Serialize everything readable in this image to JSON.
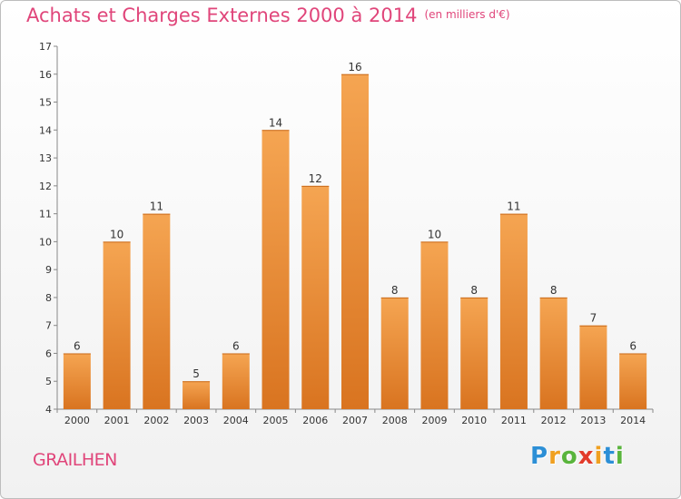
{
  "chart_data": {
    "type": "bar",
    "title": "Achats et Charges Externes 2000 à 2014",
    "subtitle": "(en milliers d'€)",
    "categories": [
      "2000",
      "2001",
      "2002",
      "2003",
      "2004",
      "2005",
      "2006",
      "2007",
      "2008",
      "2009",
      "2010",
      "2011",
      "2012",
      "2013",
      "2014"
    ],
    "values": [
      6,
      10,
      11,
      5,
      6,
      14,
      12,
      16,
      8,
      10,
      8,
      11,
      8,
      7,
      6
    ],
    "ylim": [
      4,
      17
    ],
    "yticks": [
      4,
      5,
      6,
      7,
      8,
      9,
      10,
      11,
      12,
      13,
      14,
      15,
      16,
      17
    ],
    "xlabel": "",
    "ylabel": "",
    "grid": false,
    "bar_color_top": "#f5a552",
    "bar_color_bottom": "#d97420"
  },
  "place": "GRAILHEN",
  "logo": {
    "letters": [
      "P",
      "r",
      "o",
      "x",
      "i",
      "t",
      "i"
    ],
    "colors": [
      "#2c8fd6",
      "#f0a020",
      "#59b43c",
      "#e23a2a",
      "#f0a020",
      "#2c8fd6",
      "#59b43c"
    ]
  }
}
